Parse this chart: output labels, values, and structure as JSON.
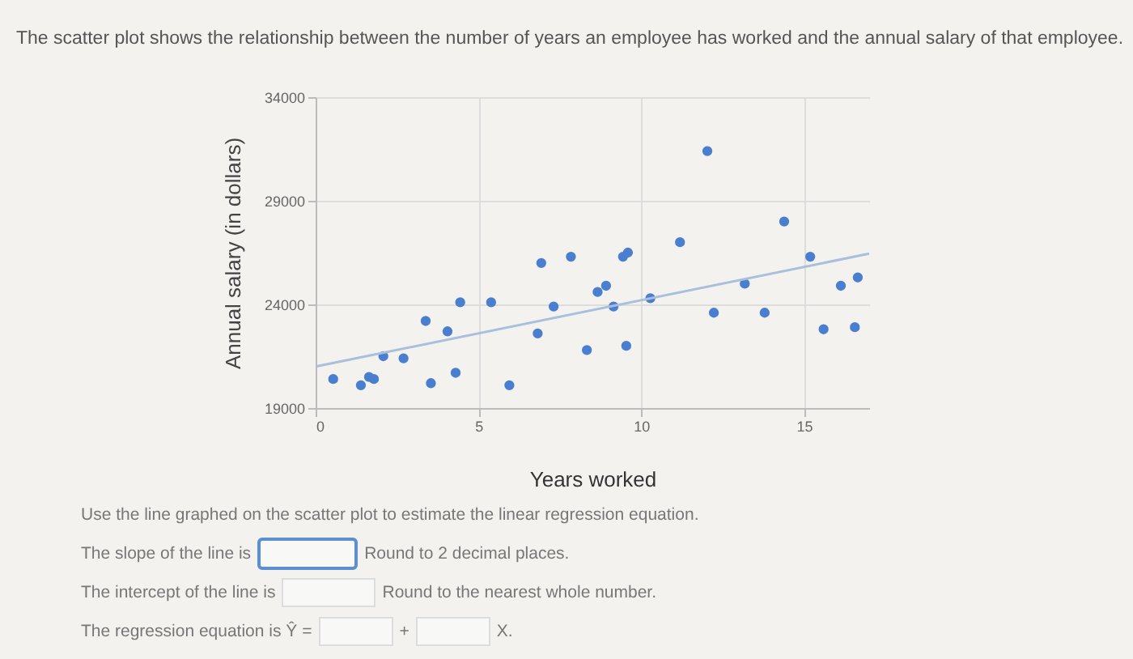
{
  "chart_data": {
    "type": "scatter",
    "title": "The scatter plot shows the relationship between the number of years an employee has worked and the annual salary of that employee.",
    "xlabel": "Years worked",
    "ylabel": "Annual salary (in dollars)",
    "xlim": [
      0,
      17
    ],
    "ylim": [
      19000,
      34000
    ],
    "xticks": [
      0,
      5,
      10,
      15
    ],
    "yticks": [
      19000,
      24000,
      29000,
      34000
    ],
    "grid": true,
    "series": [
      {
        "marker": "circle",
        "color": "#4a7fcf",
        "x": [
          0.54,
          1.39,
          1.64,
          1.79,
          2.08,
          2.7,
          3.38,
          3.54,
          4.05,
          4.3,
          4.44,
          5.39,
          5.95,
          6.82,
          6.93,
          7.31,
          7.84,
          8.33,
          8.66,
          8.92,
          9.15,
          9.44,
          9.59,
          9.54,
          10.28,
          11.19,
          12.03,
          12.23,
          13.18,
          13.79,
          14.39,
          15.19,
          15.6,
          16.13,
          16.65,
          16.56
        ],
        "values": [
          20400,
          20100,
          20500,
          20400,
          21500,
          21400,
          23200,
          20200,
          22700,
          20700,
          24100,
          24100,
          20100,
          22600,
          26000,
          23900,
          26300,
          21800,
          24600,
          24900,
          23900,
          26300,
          26500,
          22000,
          24300,
          27000,
          31400,
          23600,
          25000,
          23600,
          28000,
          26300,
          22800,
          24900,
          25300,
          22900
        ]
      },
      {
        "type": "line",
        "color": "#a9bfdc",
        "x": [
          0,
          17
        ],
        "values": [
          21000,
          26450
        ]
      }
    ],
    "annotations": [
      "Use the line graphed on the scatter plot to estimate the linear regression equation.",
      "The slope of the line is",
      "Round to 2 decimal places.",
      "The intercept of the line is",
      "Round to the nearest whole number.",
      "The regression equation is Ŷ =",
      "+",
      "X."
    ]
  }
}
